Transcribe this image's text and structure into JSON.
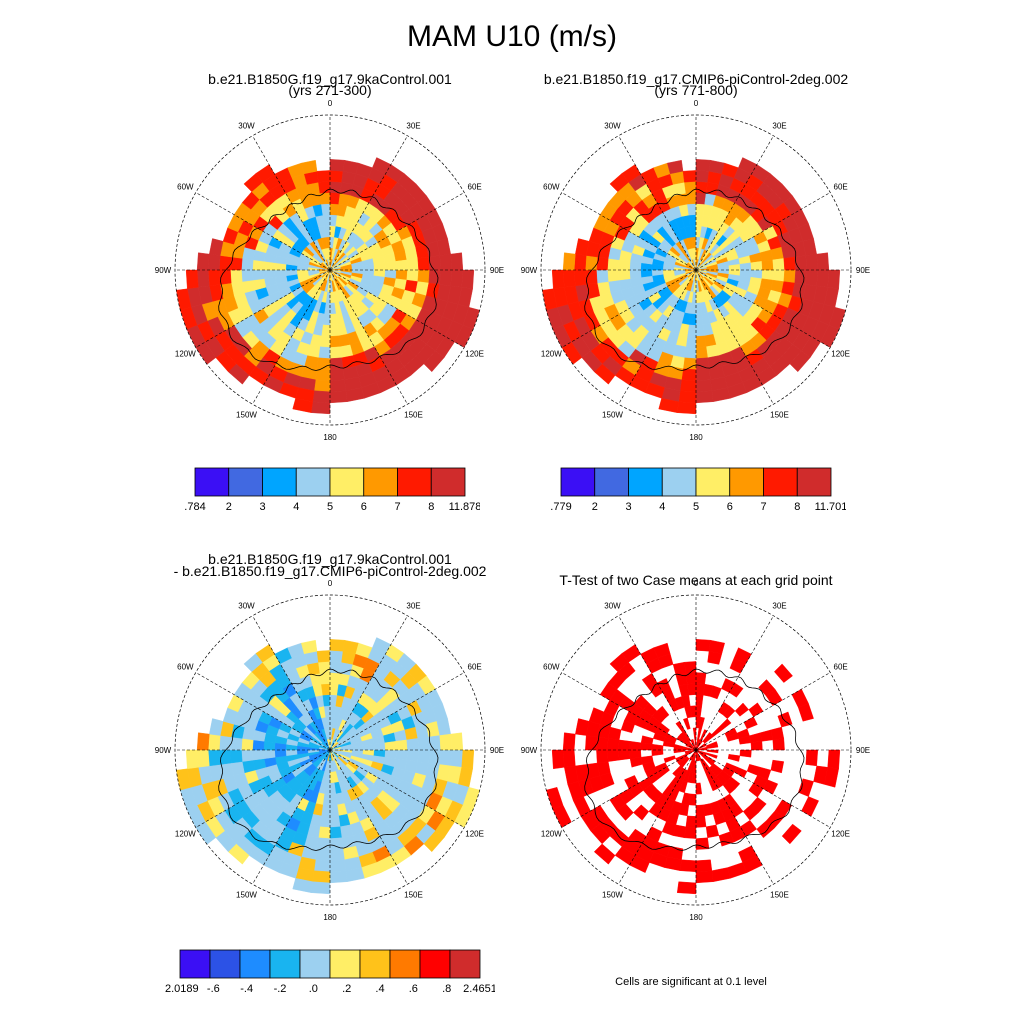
{
  "figure": {
    "title": "MAM U10 (m/s)"
  },
  "chart_data": [
    {
      "type": "heatmap",
      "projection": "south-polar-stereographic",
      "title_line1": "b.e21.B1850G.f19_g17.9kaControl.001",
      "title_line2": "(yrs 271-300)",
      "lon_labels": [
        "0",
        "30E",
        "60E",
        "90E",
        "120E",
        "150E",
        "180",
        "150W",
        "120W",
        "90W",
        "60W",
        "30W"
      ],
      "colorbar": {
        "labels": [
          ".784",
          "2",
          "3",
          "4",
          "5",
          "6",
          "7",
          "8",
          "11.878"
        ],
        "colors": [
          "#3b0ff5",
          "#4169e1",
          "#00a5ff",
          "#9cd0f0",
          "#ffee66",
          "#ff9900",
          "#ff1a00",
          "#d02c2c"
        ]
      },
      "field_pattern": "control"
    },
    {
      "type": "heatmap",
      "projection": "south-polar-stereographic",
      "title_line1": "b.e21.B1850.f19_g17.CMIP6-piControl-2deg.002",
      "title_line2": "(yrs 771-800)",
      "lon_labels": [
        "0",
        "30E",
        "60E",
        "90E",
        "120E",
        "150E",
        "180",
        "150W",
        "120W",
        "90W",
        "60W",
        "30W"
      ],
      "colorbar": {
        "labels": [
          ".779",
          "2",
          "3",
          "4",
          "5",
          "6",
          "7",
          "8",
          "11.701"
        ],
        "colors": [
          "#3b0ff5",
          "#4169e1",
          "#00a5ff",
          "#9cd0f0",
          "#ffee66",
          "#ff9900",
          "#ff1a00",
          "#d02c2c"
        ]
      },
      "field_pattern": "control"
    },
    {
      "type": "heatmap",
      "projection": "south-polar-stereographic",
      "title_line1": "b.e21.B1850G.f19_g17.9kaControl.001",
      "title_line2": "- b.e21.B1850.f19_g17.CMIP6-piControl-2deg.002",
      "lon_labels": [
        "0",
        "30E",
        "60E",
        "90E",
        "120E",
        "150E",
        "180",
        "150W",
        "120W",
        "90W",
        "60W",
        "30W"
      ],
      "colorbar": {
        "labels": [
          "-2.0189",
          "-.6",
          "-.4",
          "-.2",
          ".0",
          ".2",
          ".4",
          ".6",
          ".8",
          "2.4651"
        ],
        "colors": [
          "#3b0ff5",
          "#2c52e6",
          "#1e8cff",
          "#19b4f0",
          "#9cd0f0",
          "#ffee66",
          "#ffc21a",
          "#ff7a00",
          "#ff0000",
          "#d02c2c"
        ]
      },
      "field_pattern": "difference"
    },
    {
      "type": "heatmap",
      "projection": "south-polar-stereographic",
      "title_line1": "T-Test of two Case means at each grid point",
      "title_line2": "",
      "lon_labels": [
        "0",
        "30E",
        "60E",
        "90E",
        "120E",
        "150E",
        "180",
        "150W",
        "120W",
        "90W",
        "60W",
        "30W"
      ],
      "colorbar": null,
      "field_pattern": "significance",
      "significance_color": "#ff0000",
      "footnote": "Cells are significant at 0.1 level"
    }
  ]
}
